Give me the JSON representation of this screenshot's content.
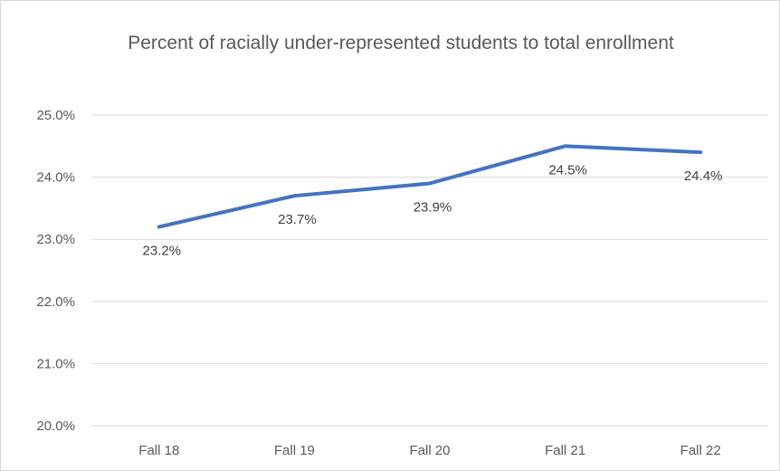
{
  "chart_data": {
    "type": "line",
    "title": "Percent of racially under-represented  students to total enrollment",
    "categories": [
      "Fall 18",
      "Fall 19",
      "Fall 20",
      "Fall 21",
      "Fall 22"
    ],
    "series": [
      {
        "values": [
          23.2,
          23.7,
          23.9,
          24.5,
          24.4
        ],
        "color": "#4472c4"
      }
    ],
    "data_labels": [
      "23.2%",
      "23.7%",
      "23.9%",
      "24.5%",
      "24.4%"
    ],
    "ylim": [
      20.0,
      25.0
    ],
    "y_ticks": [
      20.0,
      21.0,
      22.0,
      23.0,
      24.0,
      25.0
    ],
    "y_tick_labels": [
      "20.0%",
      "21.0%",
      "22.0%",
      "23.0%",
      "24.0%",
      "25.0%"
    ],
    "grid": true,
    "legend": false,
    "gridline_color": "#d9d9d9",
    "text_color": "#595959"
  }
}
